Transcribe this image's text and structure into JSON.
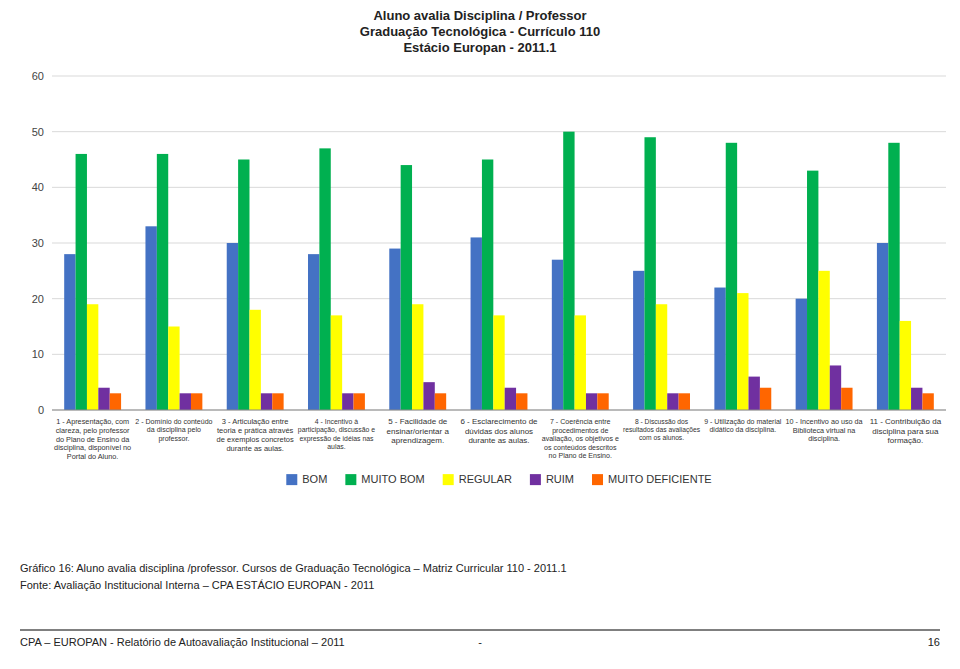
{
  "chart_data": {
    "type": "bar",
    "title": "Aluno avalia Disciplina / Professor\nGraduação Tecnológica - Currículo 110\nEstácio Europan - 2011.1",
    "categories": [
      "1 - Apresentação, com\nclareza, pelo professor\ndo Plano de Ensino da\ndisciplina, disponível no\nPortal do Aluno.",
      "2 - Domínio do conteúdo\nda disciplina pelo\nprofessor.",
      "3 - Articulação entre\nteoria e prática através\nde exemplos concretos\ndurante as aulas.",
      "4 - Incentivo à\nparticipação, discussão e\nexpressão de idéias nas\naulas.",
      "5 - Facilidade de\nensinar/orientar a\naprendizagem.",
      "6 - Esclarecimento de\ndúvidas dos alunos\ndurante as aulas.",
      "7 - Coerência entre\nprocedimentos de\navaliação, os objetivos e\nos conteúdos descritos\nno Plano de Ensino.",
      "8 - Discussão dos\nresultados das avaliações\ncom os alunos.",
      "9 - Utilização do material\ndidático da disciplina.",
      "10 - Incentivo ao uso da\nBiblioteca virtual na\ndisciplina.",
      "11 - Contribuição da\ndisciplina para sua\nformação."
    ],
    "series": [
      {
        "name": "BOM",
        "color": "#4472C4",
        "values": [
          28,
          33,
          30,
          28,
          29,
          31,
          27,
          25,
          22,
          20,
          30
        ]
      },
      {
        "name": "MUITO BOM",
        "color": "#00B050",
        "values": [
          46,
          46,
          45,
          47,
          44,
          45,
          50,
          49,
          48,
          43,
          48
        ]
      },
      {
        "name": "REGULAR",
        "color": "#FFFF00",
        "values": [
          19,
          15,
          18,
          17,
          19,
          17,
          17,
          19,
          21,
          25,
          16
        ]
      },
      {
        "name": "RUIM",
        "color": "#7030A0",
        "values": [
          4,
          3,
          3,
          3,
          5,
          4,
          3,
          3,
          6,
          8,
          4
        ]
      },
      {
        "name": "MUITO DEFICIENTE",
        "color": "#FF6600",
        "values": [
          3,
          3,
          3,
          3,
          3,
          3,
          3,
          3,
          4,
          4,
          3
        ]
      }
    ],
    "ylim": [
      0,
      60
    ],
    "yticks": [
      0,
      10,
      20,
      30,
      40,
      50,
      60
    ],
    "grid": true,
    "legend": "bottom",
    "annotations": [
      "Gráfico 16: Aluno avalia disciplina /professor. Cursos de Graduação Tecnológica – Matriz Curricular 110 - 2011.1",
      "Fonte: Avaliação Institucional Interna – CPA ESTÁCIO EUROPAN - 2011",
      "CPA – EUROPAN - Relatório de Autoavaliação Institucional – 2011",
      "-",
      "16"
    ]
  }
}
